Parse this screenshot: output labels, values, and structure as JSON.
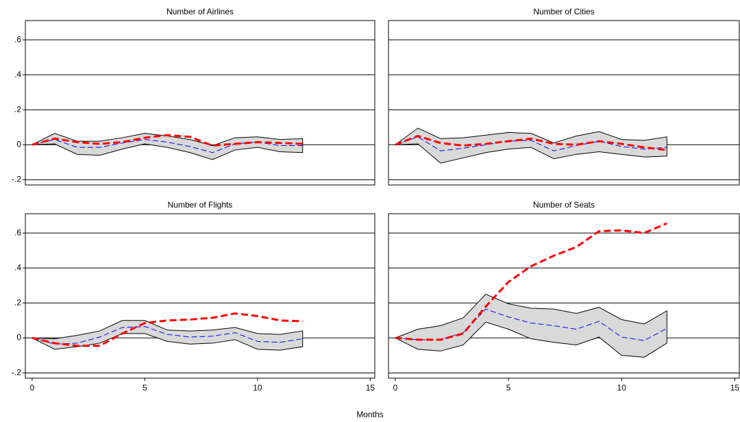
{
  "chart_data": [
    {
      "type": "line",
      "title": "Number of Airlines",
      "x": [
        0,
        1,
        2,
        3,
        4,
        5,
        6,
        7,
        8,
        9,
        10,
        11,
        12
      ],
      "band": {
        "color": "#d9d9d9",
        "upper": [
          0,
          0.065,
          0.02,
          0.02,
          0.04,
          0.065,
          0.05,
          0.03,
          -0.005,
          0.04,
          0.045,
          0.03,
          0.035
        ],
        "lower": [
          0,
          0.005,
          -0.055,
          -0.06,
          -0.025,
          0.005,
          -0.015,
          -0.045,
          -0.085,
          -0.03,
          -0.015,
          -0.04,
          -0.045
        ]
      },
      "series": [
        {
          "color": "#0000ff",
          "values": [
            0,
            0.03,
            -0.015,
            -0.015,
            0.01,
            0.03,
            0.015,
            -0.01,
            -0.045,
            0.005,
            0.015,
            -0.005,
            -0.005
          ]
        },
        {
          "color": "#ff0000",
          "values": [
            0,
            0.035,
            0.015,
            0.005,
            0.015,
            0.04,
            0.055,
            0.045,
            -0.005,
            0.005,
            0.015,
            0.01,
            0.005
          ]
        }
      ],
      "xlim": [
        -0.3,
        15.2
      ],
      "ylim": [
        -0.23,
        0.71
      ],
      "yticks": [
        {
          "value": -0.2,
          "label": "-.2"
        },
        0,
        {
          "value": 0.2,
          "label": ".2"
        },
        {
          "value": 0.4,
          "label": ".4"
        },
        {
          "value": 0.6,
          "label": ".6"
        }
      ],
      "grid": true
    },
    {
      "type": "line",
      "title": "Number of Cities",
      "x": [
        0,
        1,
        2,
        3,
        4,
        5,
        6,
        7,
        8,
        9,
        10,
        11,
        12
      ],
      "band": {
        "color": "#d9d9d9",
        "upper": [
          0,
          0.095,
          0.035,
          0.04,
          0.055,
          0.07,
          0.065,
          0.01,
          0.05,
          0.075,
          0.03,
          0.025,
          0.045
        ],
        "lower": [
          0,
          0.005,
          -0.105,
          -0.075,
          -0.045,
          -0.025,
          -0.015,
          -0.08,
          -0.055,
          -0.04,
          -0.055,
          -0.07,
          -0.065
        ]
      },
      "series": [
        {
          "color": "#0000ff",
          "values": [
            0,
            0.045,
            -0.035,
            -0.02,
            0,
            0.02,
            0.025,
            -0.035,
            -0.005,
            0.02,
            -0.01,
            -0.025,
            -0.015
          ]
        },
        {
          "color": "#ff0000",
          "values": [
            0,
            0.05,
            0.01,
            -0.005,
            0.005,
            0.02,
            0.035,
            0.005,
            0,
            0.02,
            0.005,
            -0.015,
            -0.03
          ]
        }
      ],
      "xlim": [
        -0.3,
        15.2
      ],
      "ylim": [
        -0.23,
        0.71
      ],
      "yticks": [
        {
          "value": -0.2,
          "label": "-.2"
        },
        0,
        {
          "value": 0.2,
          "label": ".2"
        },
        {
          "value": 0.4,
          "label": ".4"
        },
        {
          "value": 0.6,
          "label": ".6"
        }
      ],
      "grid": true
    },
    {
      "type": "line",
      "title": "Number of Flights",
      "x": [
        0,
        1,
        2,
        3,
        4,
        5,
        6,
        7,
        8,
        9,
        10,
        11,
        12
      ],
      "band": {
        "color": "#d9d9d9",
        "upper": [
          0,
          -0.005,
          0.015,
          0.04,
          0.1,
          0.1,
          0.045,
          0.04,
          0.045,
          0.06,
          0.025,
          0.02,
          0.04
        ],
        "lower": [
          0,
          -0.065,
          -0.05,
          -0.03,
          0.025,
          0.025,
          -0.02,
          -0.035,
          -0.03,
          -0.01,
          -0.065,
          -0.07,
          -0.05
        ]
      },
      "series": [
        {
          "color": "#0000ff",
          "values": [
            0,
            -0.035,
            -0.03,
            0.005,
            0.06,
            0.065,
            0.02,
            0.005,
            0.01,
            0.03,
            -0.02,
            -0.025,
            -0.005
          ]
        },
        {
          "color": "#ff0000",
          "values": [
            0,
            -0.03,
            -0.045,
            -0.045,
            0.025,
            0.085,
            0.1,
            0.105,
            0.115,
            0.14,
            0.125,
            0.1,
            0.095
          ]
        }
      ],
      "xlim": [
        -0.3,
        15.2
      ],
      "ylim": [
        -0.23,
        0.71
      ],
      "xticks": [
        0,
        5,
        10,
        15
      ],
      "yticks": [
        {
          "value": -0.2,
          "label": "-.2"
        },
        0,
        {
          "value": 0.2,
          "label": ".2"
        },
        {
          "value": 0.4,
          "label": ".4"
        },
        {
          "value": 0.6,
          "label": ".6"
        }
      ],
      "grid": true
    },
    {
      "type": "line",
      "title": "Number of Seats",
      "x": [
        0,
        1,
        2,
        3,
        4,
        5,
        6,
        7,
        8,
        9,
        10,
        11,
        12
      ],
      "band": {
        "color": "#d9d9d9",
        "upper": [
          0,
          0.05,
          0.07,
          0.115,
          0.25,
          0.195,
          0.17,
          0.165,
          0.14,
          0.175,
          0.105,
          0.08,
          0.155
        ],
        "lower": [
          0,
          -0.065,
          -0.075,
          -0.04,
          0.09,
          0.05,
          -0.005,
          -0.025,
          -0.04,
          0.005,
          -0.1,
          -0.11,
          -0.03
        ]
      },
      "series": [
        {
          "color": "#0000ff",
          "values": [
            0,
            -0.01,
            -0.01,
            0.03,
            0.165,
            0.12,
            0.085,
            0.07,
            0.05,
            0.095,
            0.005,
            -0.015,
            0.055
          ]
        },
        {
          "color": "#ff0000",
          "values": [
            0,
            -0.01,
            -0.01,
            0.025,
            0.18,
            0.32,
            0.41,
            0.47,
            0.52,
            0.61,
            0.615,
            0.6,
            0.655
          ]
        }
      ],
      "xlim": [
        -0.3,
        15.2
      ],
      "ylim": [
        -0.23,
        0.71
      ],
      "xticks": [
        0,
        5,
        10,
        15
      ],
      "yticks": [
        {
          "value": -0.2,
          "label": "-.2"
        },
        0,
        {
          "value": 0.2,
          "label": ".2"
        },
        {
          "value": 0.4,
          "label": ".4"
        },
        {
          "value": 0.6,
          "label": ".6"
        }
      ],
      "grid": true
    }
  ],
  "xlabel": "Months"
}
